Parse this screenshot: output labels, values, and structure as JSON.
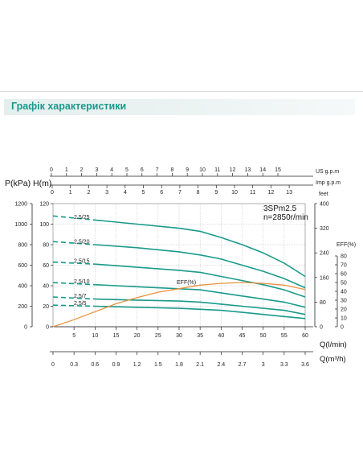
{
  "header": {
    "title": "Графік характеристики"
  },
  "chart_data": {
    "type": "line",
    "model": "3SPm2.5",
    "speed": "n=2850r/min",
    "ylabel_left": "P(kPa) H(m)",
    "ylabel_eff": "EFF(%)",
    "ylabel_feet": "feet",
    "xlabel_lmin": "Q(l/min)",
    "xlabel_m3h": "Q(m³/h)",
    "axis_usgpm": "US g.p.m",
    "axis_impgpm": "Imp g.p.m",
    "eff_label": "EFF(%)",
    "xlim": [
      0,
      60
    ],
    "ylim_m": [
      0,
      120
    ],
    "ylim_feet": [
      0,
      400
    ],
    "ylim_eff": [
      0,
      80
    ],
    "x_ticks_lmin": [
      "5",
      "10",
      "15",
      "20",
      "25",
      "30",
      "35",
      "40",
      "45",
      "50",
      "55",
      "60"
    ],
    "x_ticks_m3h": [
      "0",
      "0.3",
      "0.6",
      "0.9",
      "1.2",
      "1.5",
      "1.8",
      "2.1",
      "2.4",
      "2.7",
      "3",
      "3.3",
      "3.6"
    ],
    "usgpm_ticks": [
      "0",
      "1",
      "2",
      "3",
      "4",
      "5",
      "6",
      "7",
      "8",
      "9",
      "10",
      "11",
      "12",
      "13",
      "14",
      "15"
    ],
    "impgpm_ticks": [
      "0",
      "1",
      "2",
      "3",
      "4",
      "5",
      "6",
      "7",
      "8",
      "9",
      "10",
      "11",
      "12",
      "13"
    ],
    "kpa_ticks": [
      "1200",
      "1000",
      "800",
      "600",
      "400",
      "200",
      "0"
    ],
    "m_ticks": [
      "120",
      "100",
      "80",
      "60",
      "40",
      "20",
      "0"
    ],
    "feet_ticks": [
      "400",
      "320",
      "240",
      "160",
      "80",
      "0"
    ],
    "eff_ticks": [
      "80",
      "70",
      "60",
      "50",
      "40",
      "30",
      "20",
      "10",
      "0"
    ],
    "colors": {
      "curve": "#1a9a8c",
      "eff": "#e8923e",
      "axis": "#222222",
      "header": "#1a9a8c"
    },
    "series": [
      {
        "name": "2.5/25",
        "x": [
          0,
          10,
          20,
          30,
          35,
          40,
          45,
          50,
          55,
          60
        ],
        "y": [
          108,
          104,
          100,
          96,
          93,
          87,
          80,
          72,
          62,
          49
        ],
        "dashed_to": 10
      },
      {
        "name": "2.5/20",
        "x": [
          0,
          10,
          20,
          30,
          35,
          40,
          45,
          50,
          55,
          60
        ],
        "y": [
          83,
          80,
          77,
          73,
          70,
          66,
          60,
          54,
          47,
          38
        ],
        "dashed_to": 10
      },
      {
        "name": "2.5/15",
        "x": [
          0,
          10,
          20,
          30,
          35,
          40,
          45,
          50,
          55,
          60
        ],
        "y": [
          63,
          61,
          58,
          55,
          53,
          49,
          45,
          41,
          36,
          29
        ],
        "dashed_to": 10
      },
      {
        "name": "2.5/10",
        "x": [
          0,
          10,
          20,
          30,
          35,
          40,
          45,
          50,
          55,
          60
        ],
        "y": [
          43,
          41,
          39,
          37,
          36,
          33,
          30,
          27,
          24,
          19
        ],
        "dashed_to": 10
      },
      {
        "name": "2.5/7",
        "x": [
          0,
          10,
          20,
          30,
          35,
          40,
          45,
          50,
          55,
          60
        ],
        "y": [
          29,
          27,
          26,
          25,
          24,
          22,
          20,
          18,
          16,
          12
        ],
        "dashed_to": 10
      },
      {
        "name": "2.5/5",
        "x": [
          0,
          10,
          20,
          30,
          35,
          40,
          45,
          50,
          55,
          60
        ],
        "y": [
          21,
          20,
          19,
          18,
          17,
          16,
          14,
          12,
          10,
          8
        ],
        "dashed_to": 10
      }
    ],
    "efficiency": {
      "x": [
        0,
        5,
        10,
        15,
        20,
        25,
        30,
        35,
        40,
        45,
        50,
        55,
        60
      ],
      "y": [
        0,
        8,
        17,
        26,
        33,
        39,
        43,
        47,
        49,
        50,
        49,
        47,
        42
      ]
    }
  }
}
